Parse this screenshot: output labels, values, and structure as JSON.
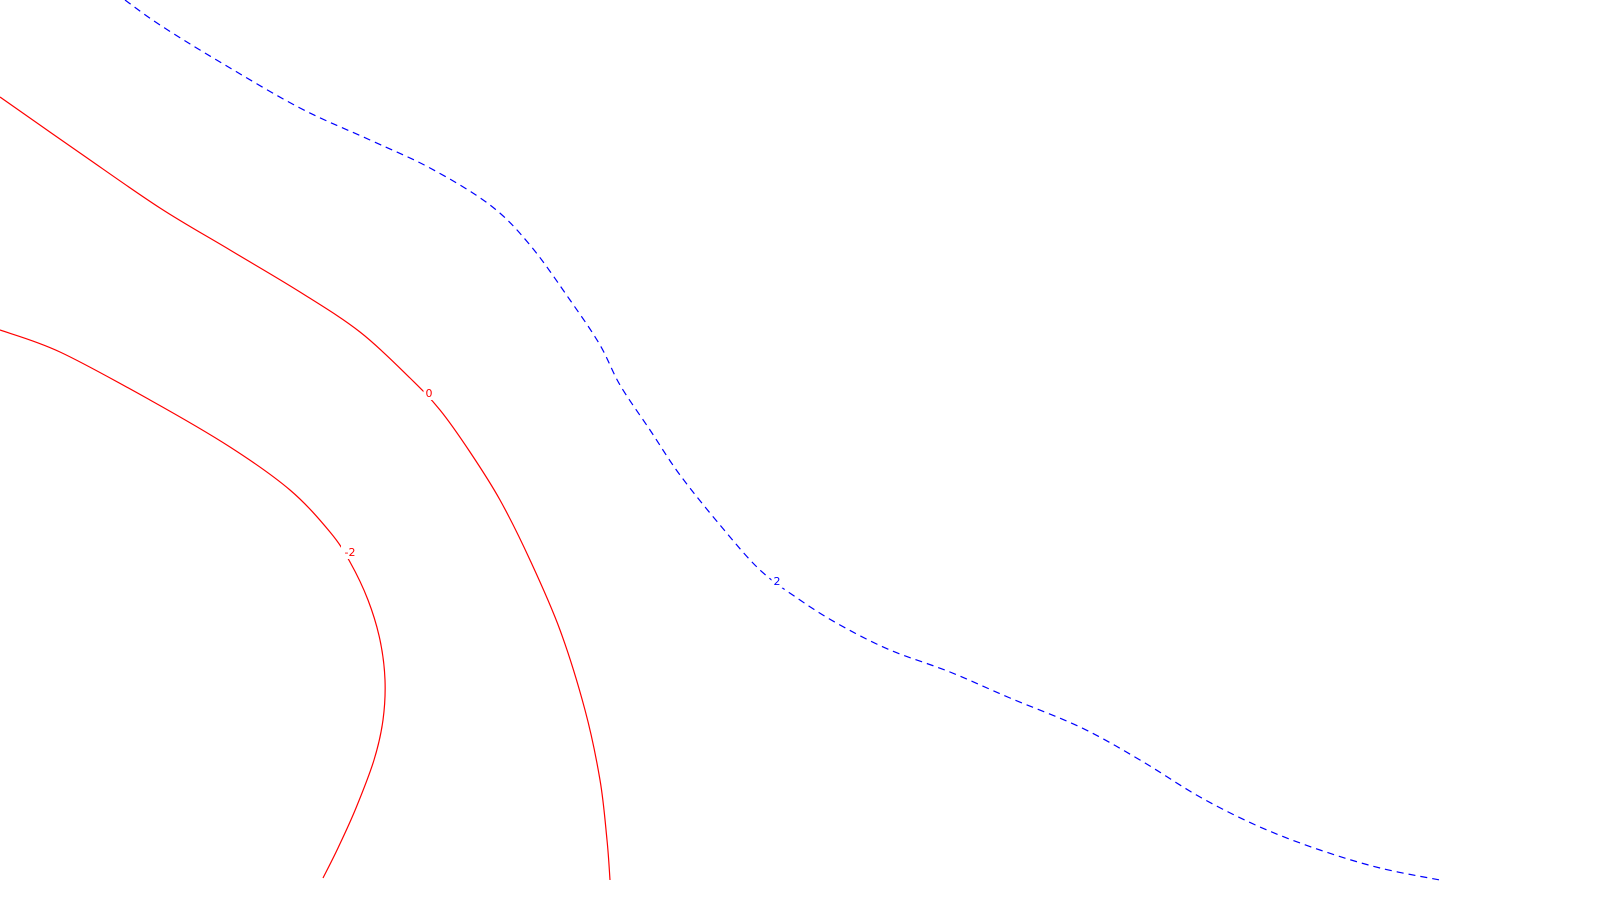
{
  "chart_data": {
    "type": "contour",
    "title": "",
    "xlabel": "",
    "ylabel": "",
    "axes_visible": false,
    "grid": false,
    "levels": [
      {
        "value": -2,
        "label": "-2",
        "color": "#ff0000",
        "style": "solid",
        "points": [
          [
            0,
            330
          ],
          [
            60,
            352
          ],
          [
            150,
            400
          ],
          [
            230,
            447
          ],
          [
            290,
            490
          ],
          [
            330,
            532
          ],
          [
            350,
            562
          ],
          [
            368,
            600
          ],
          [
            380,
            640
          ],
          [
            385,
            680
          ],
          [
            383,
            720
          ],
          [
            374,
            760
          ],
          [
            356,
            808
          ],
          [
            338,
            848
          ],
          [
            323,
            878
          ]
        ]
      },
      {
        "value": 0,
        "label": "0",
        "color": "#ff0000",
        "style": "solid",
        "points": [
          [
            0,
            97
          ],
          [
            80,
            153
          ],
          [
            160,
            208
          ],
          [
            230,
            250
          ],
          [
            300,
            292
          ],
          [
            360,
            332
          ],
          [
            410,
            378
          ],
          [
            440,
            410
          ],
          [
            470,
            452
          ],
          [
            500,
            500
          ],
          [
            530,
            560
          ],
          [
            560,
            630
          ],
          [
            585,
            710
          ],
          [
            600,
            780
          ],
          [
            607,
            840
          ],
          [
            610,
            880
          ]
        ]
      },
      {
        "value": 2,
        "label": "2",
        "color": "#0000ff",
        "style": "dashed",
        "points": [
          [
            125,
            0
          ],
          [
            160,
            25
          ],
          [
            220,
            62
          ],
          [
            300,
            108
          ],
          [
            370,
            140
          ],
          [
            430,
            168
          ],
          [
            490,
            205
          ],
          [
            530,
            245
          ],
          [
            570,
            300
          ],
          [
            600,
            345
          ],
          [
            620,
            385
          ],
          [
            650,
            430
          ],
          [
            680,
            475
          ],
          [
            720,
            525
          ],
          [
            760,
            570
          ],
          [
            800,
            600
          ],
          [
            840,
            625
          ],
          [
            890,
            650
          ],
          [
            950,
            672
          ],
          [
            1010,
            698
          ],
          [
            1080,
            727
          ],
          [
            1140,
            760
          ],
          [
            1200,
            797
          ],
          [
            1260,
            827
          ],
          [
            1320,
            850
          ],
          [
            1380,
            868
          ],
          [
            1440,
            880
          ]
        ]
      }
    ]
  }
}
